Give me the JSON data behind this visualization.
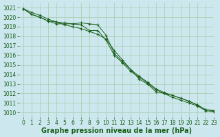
{
  "background_color": "#cce8ee",
  "grid_color": "#a8ccaa",
  "line_color": "#1a5e1a",
  "marker_color": "#1a5e1a",
  "xlabel": "Graphe pression niveau de la mer (hPa)",
  "xlabel_color": "#1a5e1a",
  "xlabel_fontsize": 7.0,
  "tick_fontsize": 5.5,
  "xlim": [
    -0.5,
    23
  ],
  "ylim": [
    1009.5,
    1021.5
  ],
  "yticks": [
    1010,
    1011,
    1012,
    1013,
    1014,
    1015,
    1016,
    1017,
    1018,
    1019,
    1020,
    1021
  ],
  "xticks": [
    0,
    1,
    2,
    3,
    4,
    5,
    6,
    7,
    8,
    9,
    10,
    11,
    12,
    13,
    14,
    15,
    16,
    17,
    18,
    19,
    20,
    21,
    22,
    23
  ],
  "series": [
    [
      1020.9,
      1020.5,
      1020.2,
      1019.8,
      1019.5,
      1019.2,
      1019.0,
      1018.8,
      1018.5,
      1018.2,
      1017.7,
      1016.5,
      1015.5,
      1014.5,
      1013.5,
      1013.0,
      1012.2,
      1012.0,
      1011.8,
      1011.5,
      1011.2,
      1010.8,
      1010.3,
      1010.2
    ],
    [
      1020.9,
      1020.3,
      1020.0,
      1019.6,
      1019.5,
      1019.4,
      1019.3,
      1019.4,
      1019.3,
      1019.2,
      1018.1,
      1016.2,
      1015.3,
      1014.5,
      1013.8,
      1013.2,
      1012.5,
      1012.1,
      1011.8,
      1011.5,
      1011.2,
      1010.8,
      1010.3,
      1010.2
    ],
    [
      1020.9,
      1020.3,
      1020.0,
      1019.6,
      1019.3,
      1019.3,
      1019.3,
      1019.2,
      1018.6,
      1018.6,
      1017.6,
      1016.0,
      1015.2,
      1014.3,
      1013.7,
      1013.1,
      1012.4,
      1012.0,
      1011.6,
      1011.3,
      1011.0,
      1010.7,
      1010.2,
      1010.1
    ]
  ]
}
